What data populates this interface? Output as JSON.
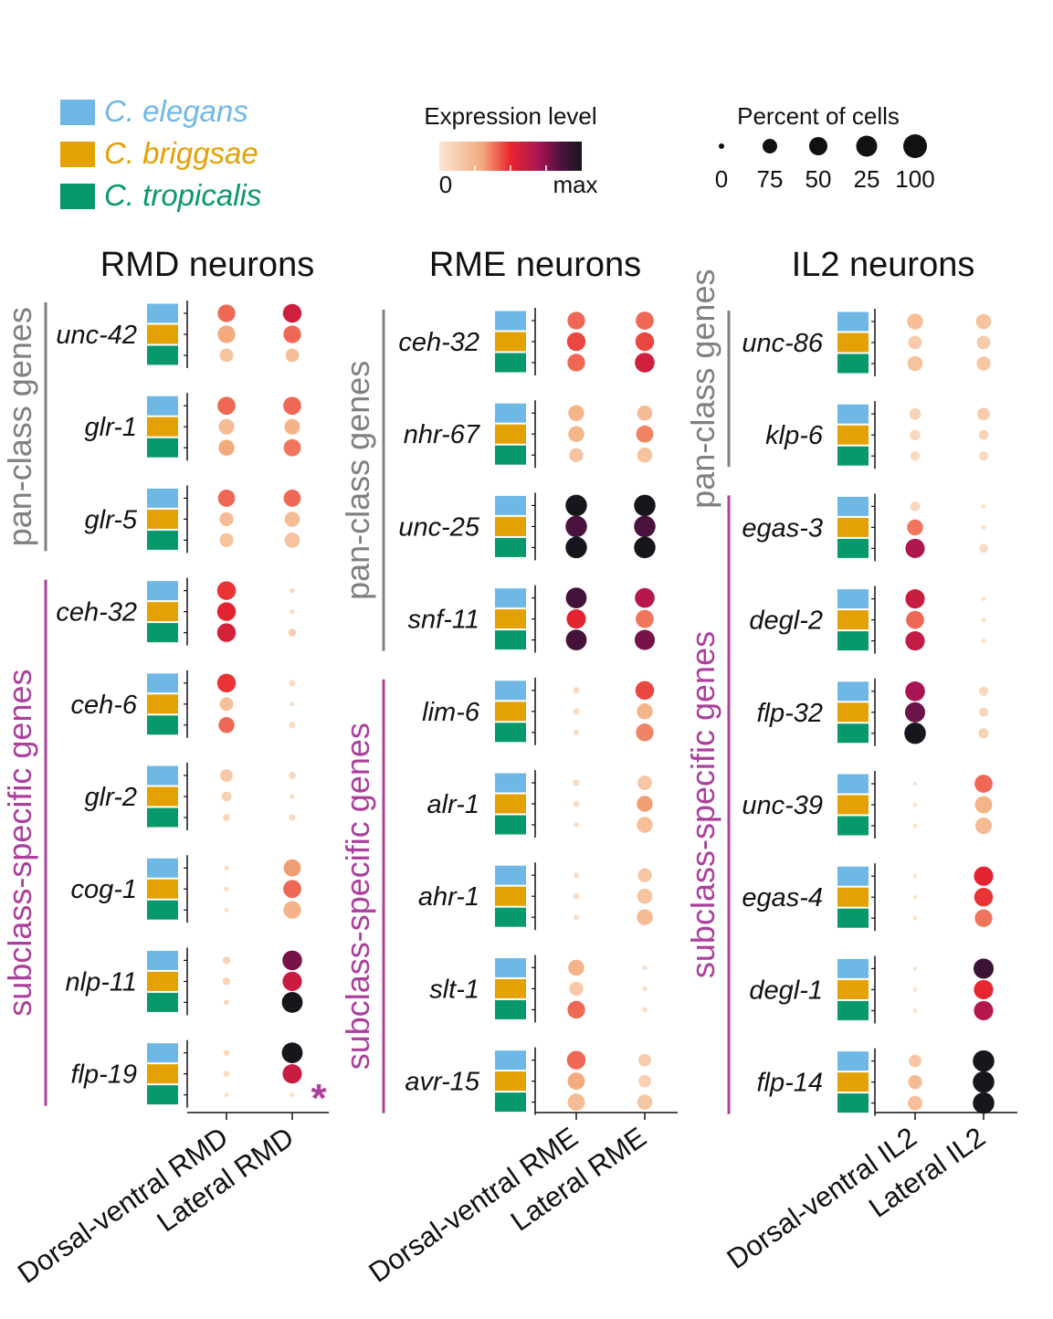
{
  "legend": {
    "species": [
      {
        "name": "C. elegans",
        "color": "#6fb8e6"
      },
      {
        "name": "C. briggsae",
        "color": "#e3a104"
      },
      {
        "name": "C. tropicalis",
        "color": "#07996b"
      }
    ],
    "expression": {
      "title": "Expression level",
      "min_label": "0",
      "max_label": "max"
    },
    "percent": {
      "title": "Percent of cells",
      "labels": [
        "0",
        "75",
        "50",
        "25",
        "100"
      ]
    }
  },
  "chart_data": [
    {
      "type": "dot-matrix",
      "title": "RMD neurons",
      "groups": [
        {
          "label": "pan-class genes",
          "color": "#808080",
          "genes": [
            "unc-42",
            "glr-1",
            "glr-5"
          ]
        },
        {
          "label": "subclass-specific genes",
          "color": "#ab3f9b",
          "genes": [
            "ceh-32",
            "ceh-6",
            "glr-2",
            "cog-1",
            "nlp-11",
            "flp-19"
          ]
        }
      ],
      "columns": [
        "Dorsal-ventral RMD",
        "Lateral RMD"
      ],
      "species": [
        "C. elegans",
        "C. briggsae",
        "C. tropicalis"
      ],
      "annotation": "*",
      "genes": [
        {
          "name": "unc-42",
          "expr": [
            [
              0.4,
              0.3,
              0.18
            ],
            [
              0.58,
              0.4,
              0.2
            ]
          ],
          "pct": [
            [
              80,
              80,
              60
            ],
            [
              85,
              80,
              60
            ]
          ]
        },
        {
          "name": "glr-1",
          "expr": [
            [
              0.4,
              0.22,
              0.3
            ],
            [
              0.4,
              0.26,
              0.38
            ]
          ],
          "pct": [
            [
              82,
              70,
              72
            ],
            [
              82,
              70,
              78
            ]
          ]
        },
        {
          "name": "glr-5",
          "expr": [
            [
              0.4,
              0.22,
              0.18
            ],
            [
              0.4,
              0.22,
              0.18
            ]
          ],
          "pct": [
            [
              78,
              62,
              62
            ],
            [
              78,
              68,
              68
            ]
          ]
        },
        {
          "name": "ceh-32",
          "expr": [
            [
              0.48,
              0.52,
              0.56
            ],
            [
              0.08,
              0.06,
              0.14
            ]
          ],
          "pct": [
            [
              85,
              85,
              85
            ],
            [
              10,
              10,
              28
            ]
          ]
        },
        {
          "name": "ceh-6",
          "expr": [
            [
              0.48,
              0.2,
              0.4
            ],
            [
              0.06,
              0.04,
              0.06
            ]
          ],
          "pct": [
            [
              85,
              60,
              72
            ],
            [
              20,
              10,
              22
            ]
          ]
        },
        {
          "name": "glr-2",
          "expr": [
            [
              0.15,
              0.12,
              0.08
            ],
            [
              0.08,
              0.05,
              0.06
            ]
          ],
          "pct": [
            [
              55,
              40,
              25
            ],
            [
              25,
              10,
              22
            ]
          ]
        },
        {
          "name": "cog-1",
          "expr": [
            [
              0.05,
              0.04,
              0.04
            ],
            [
              0.32,
              0.4,
              0.26
            ]
          ],
          "pct": [
            [
              8,
              12,
              6
            ],
            [
              78,
              82,
              80
            ]
          ]
        },
        {
          "name": "nlp-11",
          "expr": [
            [
              0.1,
              0.1,
              0.08
            ],
            [
              0.78,
              0.6,
              1.0
            ]
          ],
          "pct": [
            [
              28,
              28,
              15
            ],
            [
              90,
              88,
              95
            ]
          ]
        },
        {
          "name": "flp-19",
          "expr": [
            [
              0.06,
              0.06,
              0.03
            ],
            [
              1.0,
              0.6,
              0.04
            ]
          ],
          "pct": [
            [
              20,
              20,
              10
            ],
            [
              95,
              88,
              10
            ]
          ]
        }
      ]
    },
    {
      "type": "dot-matrix",
      "title": "RME neurons",
      "groups": [
        {
          "label": "pan-class genes",
          "color": "#808080",
          "genes": [
            "ceh-32",
            "nhr-67",
            "unc-25",
            "snf-11"
          ]
        },
        {
          "label": "subclass-specific genes",
          "color": "#ab3f9b",
          "genes": [
            "lim-6",
            "alr-1",
            "ahr-1",
            "slt-1",
            "avr-15"
          ]
        }
      ],
      "columns": [
        "Dorsal-ventral RME",
        "Lateral RME"
      ],
      "species": [
        "C. elegans",
        "C. briggsae",
        "C. tropicalis"
      ],
      "genes": [
        {
          "name": "ceh-32",
          "expr": [
            [
              0.4,
              0.45,
              0.4
            ],
            [
              0.4,
              0.45,
              0.58
            ]
          ],
          "pct": [
            [
              80,
              85,
              80
            ],
            [
              82,
              85,
              90
            ]
          ]
        },
        {
          "name": "nhr-67",
          "expr": [
            [
              0.25,
              0.25,
              0.18
            ],
            [
              0.22,
              0.36,
              0.18
            ]
          ],
          "pct": [
            [
              72,
              72,
              62
            ],
            [
              68,
              78,
              68
            ]
          ]
        },
        {
          "name": "unc-25",
          "expr": [
            [
              1.0,
              0.86,
              1.0
            ],
            [
              1.0,
              0.86,
              1.0
            ]
          ],
          "pct": [
            [
              98,
              98,
              98
            ],
            [
              98,
              98,
              98
            ]
          ]
        },
        {
          "name": "snf-11",
          "expr": [
            [
              0.88,
              0.52,
              0.88
            ],
            [
              0.66,
              0.38,
              0.78
            ]
          ],
          "pct": [
            [
              95,
              88,
              95
            ],
            [
              90,
              82,
              92
            ]
          ]
        },
        {
          "name": "lim-6",
          "expr": [
            [
              0.06,
              0.06,
              0.05
            ],
            [
              0.45,
              0.25,
              0.36
            ]
          ],
          "pct": [
            [
              22,
              22,
              15
            ],
            [
              85,
              72,
              80
            ]
          ]
        },
        {
          "name": "alr-1",
          "expr": [
            [
              0.06,
              0.05,
              0.04
            ],
            [
              0.16,
              0.32,
              0.2
            ]
          ],
          "pct": [
            [
              22,
              20,
              15
            ],
            [
              65,
              72,
              72
            ]
          ]
        },
        {
          "name": "ahr-1",
          "expr": [
            [
              0.05,
              0.05,
              0.05
            ],
            [
              0.16,
              0.18,
              0.22
            ]
          ],
          "pct": [
            [
              15,
              20,
              15
            ],
            [
              62,
              68,
              72
            ]
          ]
        },
        {
          "name": "slt-1",
          "expr": [
            [
              0.26,
              0.15,
              0.4
            ],
            [
              0.04,
              0.05,
              0.05
            ]
          ],
          "pct": [
            [
              72,
              62,
              80
            ],
            [
              10,
              12,
              12
            ]
          ]
        },
        {
          "name": "avr-15",
          "expr": [
            [
              0.4,
              0.3,
              0.22
            ],
            [
              0.14,
              0.12,
              0.16
            ]
          ],
          "pct": [
            [
              85,
              78,
              78
            ],
            [
              55,
              55,
              68
            ]
          ]
        }
      ]
    },
    {
      "type": "dot-matrix",
      "title": "IL2 neurons",
      "groups": [
        {
          "label": "pan-class genes",
          "color": "#808080",
          "genes": [
            "unc-86",
            "klp-6"
          ]
        },
        {
          "label": "subclass-specific genes",
          "color": "#ab3f9b",
          "genes": [
            "egas-3",
            "degl-2",
            "flp-32",
            "unc-39",
            "egas-4",
            "degl-1",
            "flp-14"
          ]
        }
      ],
      "columns": [
        "Dorsal-ventral IL2",
        "Lateral IL2"
      ],
      "species": [
        "C. elegans",
        "C. briggsae",
        "C. tropicalis"
      ],
      "genes": [
        {
          "name": "unc-86",
          "expr": [
            [
              0.2,
              0.14,
              0.18
            ],
            [
              0.18,
              0.14,
              0.16
            ]
          ],
          "pct": [
            [
              72,
              60,
              68
            ],
            [
              68,
              60,
              62
            ]
          ]
        },
        {
          "name": "klp-6",
          "expr": [
            [
              0.1,
              0.08,
              0.06
            ],
            [
              0.14,
              0.1,
              0.06
            ]
          ],
          "pct": [
            [
              50,
              45,
              40
            ],
            [
              55,
              40,
              38
            ]
          ]
        },
        {
          "name": "egas-3",
          "expr": [
            [
              0.08,
              0.38,
              0.68
            ],
            [
              0.02,
              0.03,
              0.06
            ]
          ],
          "pct": [
            [
              40,
              72,
              88
            ],
            [
              8,
              10,
              35
            ]
          ]
        },
        {
          "name": "degl-2",
          "expr": [
            [
              0.6,
              0.4,
              0.62
            ],
            [
              0.03,
              0.03,
              0.03
            ]
          ],
          "pct": [
            [
              88,
              82,
              88
            ],
            [
              8,
              10,
              10
            ]
          ]
        },
        {
          "name": "flp-32",
          "expr": [
            [
              0.7,
              0.8,
              1.0
            ],
            [
              0.08,
              0.08,
              0.1
            ]
          ],
          "pct": [
            [
              90,
              92,
              98
            ],
            [
              38,
              38,
              42
            ]
          ]
        },
        {
          "name": "unc-39",
          "expr": [
            [
              0.02,
              0.02,
              0.02
            ],
            [
              0.4,
              0.26,
              0.22
            ]
          ],
          "pct": [
            [
              5,
              5,
              5
            ],
            [
              82,
              78,
              75
            ]
          ]
        },
        {
          "name": "egas-4",
          "expr": [
            [
              0.02,
              0.02,
              0.02
            ],
            [
              0.52,
              0.48,
              0.38
            ]
          ],
          "pct": [
            [
              6,
              6,
              6
            ],
            [
              88,
              85,
              80
            ]
          ]
        },
        {
          "name": "degl-1",
          "expr": [
            [
              0.02,
              0.02,
              0.02
            ],
            [
              0.9,
              0.5,
              0.66
            ]
          ],
          "pct": [
            [
              6,
              6,
              6
            ],
            [
              92,
              88,
              88
            ]
          ]
        },
        {
          "name": "flp-14",
          "expr": [
            [
              0.16,
              0.22,
              0.2
            ],
            [
              1.0,
              1.0,
              1.0
            ]
          ],
          "pct": [
            [
              55,
              62,
              65
            ],
            [
              98,
              98,
              98
            ]
          ]
        }
      ]
    }
  ]
}
